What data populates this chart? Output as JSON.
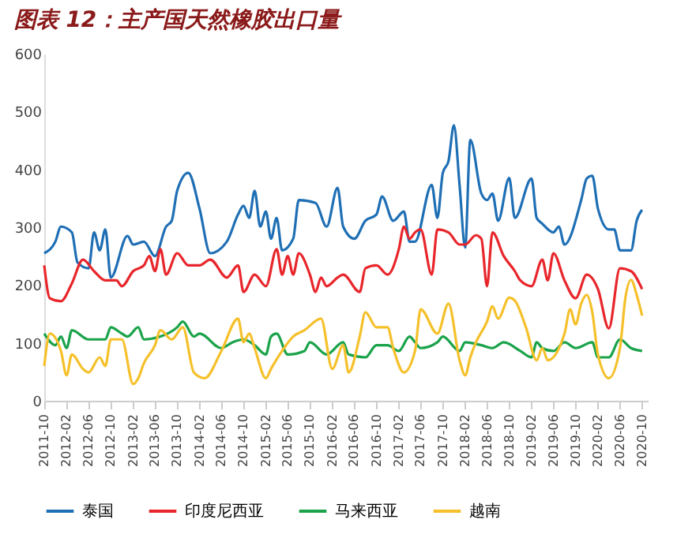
{
  "chart_data": {
    "type": "line",
    "title": "图表 12：主产国天然橡胶出口量",
    "xlim": [
      "2011-10",
      "2020-11"
    ],
    "xticks": [
      "2011-10",
      "2012-02",
      "2012-06",
      "2012-10",
      "2013-02",
      "2013-06",
      "2013-10",
      "2014-02",
      "2014-06",
      "2014-10",
      "2015-02",
      "2015-06",
      "2015-10",
      "2016-02",
      "2016-06",
      "2016-10",
      "2017-02",
      "2017-06",
      "2017-10",
      "2018-02",
      "2018-06",
      "2018-10",
      "2019-02",
      "2019-06",
      "2019-10",
      "2020-02",
      "2020-06",
      "2020-10"
    ],
    "ylim": [
      0,
      600
    ],
    "yticks": [
      0,
      100,
      200,
      300,
      400,
      500,
      600
    ],
    "grid": false,
    "legend": "bottom",
    "line_style": "solid",
    "marker": "none",
    "series": [
      {
        "name": "泰国",
        "color": "#1f6fb5",
        "x": [
          "2011-10",
          "2011-12",
          "2012-01",
          "2012-03",
          "2012-04",
          "2012-06",
          "2012-07",
          "2012-08",
          "2012-09",
          "2012-10",
          "2013-01",
          "2013-02",
          "2013-04",
          "2013-06",
          "2013-08",
          "2013-09",
          "2013-10",
          "2013-12",
          "2014-02",
          "2014-04",
          "2014-07",
          "2014-09",
          "2014-10",
          "2014-11",
          "2014-12",
          "2015-01",
          "2015-02",
          "2015-03",
          "2015-04",
          "2015-05",
          "2015-07",
          "2015-08",
          "2015-11",
          "2016-01",
          "2016-03",
          "2016-04",
          "2016-06",
          "2016-08",
          "2016-10",
          "2016-11",
          "2017-01",
          "2017-03",
          "2017-04",
          "2017-05",
          "2017-08",
          "2017-09",
          "2017-10",
          "2017-11",
          "2017-12",
          "2018-01",
          "2018-02",
          "2018-03",
          "2018-05",
          "2018-06",
          "2018-07",
          "2018-08",
          "2018-10",
          "2018-11",
          "2019-02",
          "2019-03",
          "2019-04",
          "2019-06",
          "2019-07",
          "2019-08",
          "2019-11",
          "2019-12",
          "2020-01",
          "2020-02",
          "2020-04",
          "2020-05",
          "2020-06",
          "2020-08",
          "2020-09",
          "2020-10"
        ],
        "values": [
          255,
          275,
          301,
          291,
          239,
          229,
          291,
          260,
          296,
          213,
          285,
          270,
          275,
          250,
          301,
          311,
          363,
          394,
          332,
          255,
          275,
          322,
          337,
          316,
          363,
          301,
          327,
          280,
          316,
          260,
          280,
          347,
          342,
          301,
          368,
          301,
          280,
          311,
          322,
          353,
          311,
          327,
          275,
          275,
          373,
          316,
          394,
          414,
          476,
          373,
          265,
          451,
          358,
          347,
          358,
          311,
          385,
          316,
          384,
          316,
          306,
          291,
          301,
          270,
          347,
          384,
          389,
          332,
          296,
          296,
          260,
          260,
          311,
          330
        ]
      },
      {
        "name": "印度尼西亚",
        "color": "#e8262b",
        "x": [
          "2011-10",
          "2011-11",
          "2012-01",
          "2012-03",
          "2012-05",
          "2012-07",
          "2012-09",
          "2012-11",
          "2012-12",
          "2013-02",
          "2013-04",
          "2013-05",
          "2013-06",
          "2013-07",
          "2013-08",
          "2013-10",
          "2013-12",
          "2014-02",
          "2014-04",
          "2014-07",
          "2014-09",
          "2014-10",
          "2014-12",
          "2015-02",
          "2015-04",
          "2015-05",
          "2015-06",
          "2015-07",
          "2015-08",
          "2015-10",
          "2015-11",
          "2015-12",
          "2016-01",
          "2016-03",
          "2016-04",
          "2016-07",
          "2016-08",
          "2016-10",
          "2016-12",
          "2017-02",
          "2017-03",
          "2017-04",
          "2017-05",
          "2017-06",
          "2017-08",
          "2017-09",
          "2017-11",
          "2018-01",
          "2018-02",
          "2018-04",
          "2018-05",
          "2018-06",
          "2018-07",
          "2018-09",
          "2018-11",
          "2018-12",
          "2019-02",
          "2019-04",
          "2019-05",
          "2019-06",
          "2019-08",
          "2019-10",
          "2019-12",
          "2020-02",
          "2020-04",
          "2020-06",
          "2020-08",
          "2020-10"
        ],
        "values": [
          234,
          177,
          172,
          203,
          244,
          224,
          208,
          208,
          198,
          224,
          234,
          250,
          224,
          262,
          218,
          255,
          234,
          234,
          244,
          213,
          234,
          188,
          218,
          198,
          262,
          218,
          250,
          218,
          255,
          218,
          188,
          213,
          198,
          213,
          218,
          188,
          229,
          234,
          218,
          262,
          301,
          280,
          291,
          296,
          218,
          296,
          291,
          270,
          270,
          286,
          280,
          198,
          291,
          250,
          224,
          208,
          198,
          244,
          208,
          255,
          208,
          177,
          218,
          193,
          125,
          229,
          224,
          193
        ]
      },
      {
        "name": "马来西亚",
        "color": "#1aa34a",
        "x": [
          "2011-10",
          "2011-12",
          "2012-01",
          "2012-02",
          "2012-03",
          "2012-06",
          "2012-09",
          "2012-10",
          "2012-12",
          "2013-01",
          "2013-03",
          "2013-04",
          "2013-07",
          "2013-10",
          "2013-11",
          "2014-01",
          "2014-02",
          "2014-06",
          "2014-08",
          "2014-10",
          "2014-12",
          "2015-02",
          "2015-03",
          "2015-04",
          "2015-06",
          "2015-09",
          "2015-10",
          "2016-01",
          "2016-04",
          "2016-05",
          "2016-08",
          "2016-10",
          "2016-12",
          "2017-02",
          "2017-04",
          "2017-05",
          "2017-06",
          "2017-09",
          "2017-10",
          "2018-01",
          "2018-02",
          "2018-05",
          "2018-07",
          "2018-09",
          "2018-12",
          "2019-02",
          "2019-03",
          "2019-04",
          "2019-06",
          "2019-08",
          "2019-10",
          "2020-01",
          "2020-02",
          "2020-04",
          "2020-06",
          "2020-08",
          "2020-10"
        ],
        "values": [
          116,
          96,
          111,
          91,
          122,
          106,
          106,
          127,
          116,
          111,
          127,
          106,
          111,
          127,
          137,
          111,
          116,
          91,
          101,
          106,
          96,
          80,
          111,
          116,
          80,
          86,
          101,
          80,
          101,
          80,
          75,
          96,
          96,
          86,
          111,
          101,
          91,
          101,
          111,
          86,
          101,
          96,
          91,
          101,
          86,
          75,
          101,
          91,
          86,
          101,
          91,
          101,
          75,
          75,
          106,
          91,
          86
        ]
      },
      {
        "name": "越南",
        "color": "#f5c02a",
        "x": [
          "2011-10",
          "2011-11",
          "2012-01",
          "2012-02",
          "2012-03",
          "2012-05",
          "2012-06",
          "2012-08",
          "2012-09",
          "2012-10",
          "2012-12",
          "2013-02",
          "2013-03",
          "2013-04",
          "2013-06",
          "2013-07",
          "2013-09",
          "2013-11",
          "2014-01",
          "2014-03",
          "2014-06",
          "2014-09",
          "2014-10",
          "2014-11",
          "2014-12",
          "2015-02",
          "2015-03",
          "2015-05",
          "2015-07",
          "2015-09",
          "2015-12",
          "2016-02",
          "2016-04",
          "2016-05",
          "2016-07",
          "2016-08",
          "2016-10",
          "2016-12",
          "2017-01",
          "2017-03",
          "2017-05",
          "2017-06",
          "2017-09",
          "2017-11",
          "2018-01",
          "2018-02",
          "2018-03",
          "2018-04",
          "2018-06",
          "2018-07",
          "2018-08",
          "2018-10",
          "2018-11",
          "2019-01",
          "2019-03",
          "2019-04",
          "2019-05",
          "2019-08",
          "2019-09",
          "2019-10",
          "2019-11",
          "2019-12",
          "2020-01",
          "2020-02",
          "2020-04",
          "2020-06",
          "2020-07",
          "2020-08",
          "2020-09",
          "2020-10"
        ],
        "values": [
          60,
          116,
          86,
          44,
          80,
          55,
          49,
          75,
          60,
          106,
          106,
          29,
          39,
          65,
          96,
          122,
          106,
          127,
          49,
          39,
          86,
          142,
          101,
          116,
          91,
          39,
          55,
          86,
          111,
          122,
          142,
          55,
          96,
          49,
          111,
          153,
          127,
          127,
          91,
          49,
          86,
          158,
          116,
          168,
          70,
          44,
          75,
          101,
          137,
          163,
          142,
          178,
          173,
          127,
          70,
          91,
          70,
          116,
          158,
          132,
          168,
          183,
          153,
          80,
          39,
          91,
          178,
          209,
          183,
          147
        ]
      }
    ]
  }
}
